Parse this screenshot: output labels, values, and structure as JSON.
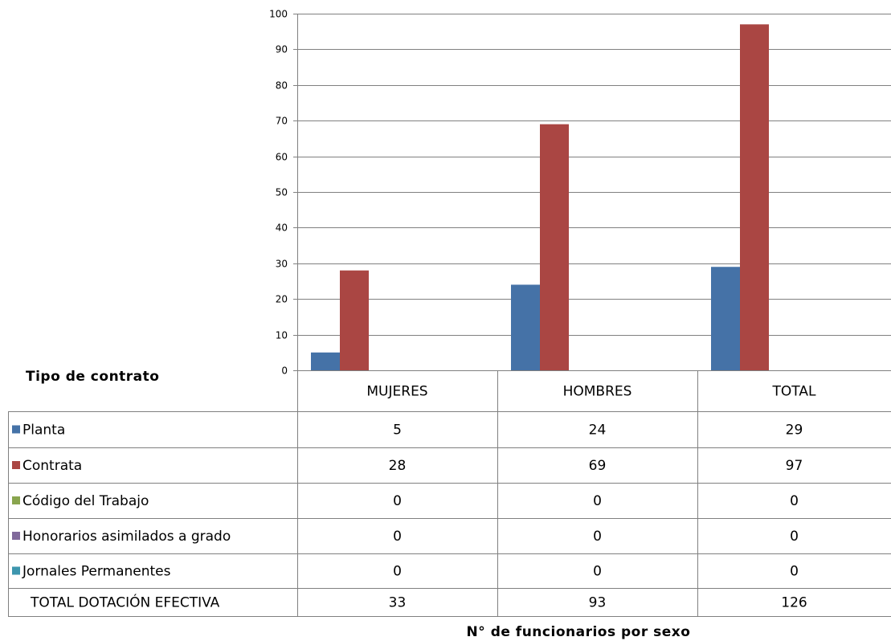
{
  "chart_data": {
    "type": "bar",
    "title": "",
    "xlabel": "N° de funcionarios por sexo",
    "ylabel": "",
    "table_header": "Tipo de contrato",
    "categories": [
      "MUJERES",
      "HOMBRES",
      "TOTAL"
    ],
    "ylim": [
      0,
      100
    ],
    "yticks": [
      0,
      10,
      20,
      30,
      40,
      50,
      60,
      70,
      80,
      90,
      100
    ],
    "grid": true,
    "series": [
      {
        "name": "Planta",
        "color": "#4572a7",
        "values": [
          5,
          24,
          29
        ]
      },
      {
        "name": "Contrata",
        "color": "#aa4643",
        "values": [
          28,
          69,
          97
        ]
      },
      {
        "name": "Código del Trabajo",
        "color": "#89a54e",
        "values": [
          0,
          0,
          0
        ]
      },
      {
        "name": "Honorarios asimilados a grado",
        "color": "#80699b",
        "values": [
          0,
          0,
          0
        ]
      },
      {
        "name": "Jornales Permanentes",
        "color": "#3d96ae",
        "values": [
          0,
          0,
          0
        ]
      }
    ],
    "total_row": {
      "name": "TOTAL DOTACIÓN EFECTIVA",
      "values": [
        33,
        93,
        126
      ]
    }
  }
}
